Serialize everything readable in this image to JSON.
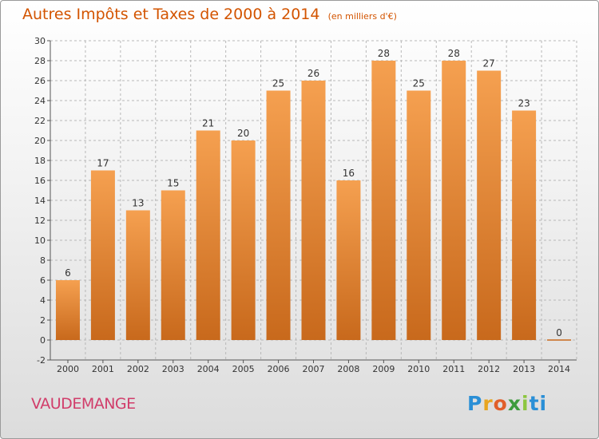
{
  "place_name": "VAUDEMANGE",
  "logo": {
    "letters": [
      "P",
      "r",
      "o",
      "x",
      "i",
      "ti"
    ]
  },
  "colors": {
    "bar_top": "#f5a050",
    "bar_bottom": "#c8691c",
    "title": "#d35400",
    "place": "#d13d6a",
    "grid": "#b8b8b8"
  },
  "chart_data": {
    "type": "bar",
    "title": "Autres Impôts et Taxes de 2000 à 2014",
    "unit_label": "(en milliers d'€)",
    "categories": [
      "2000",
      "2001",
      "2002",
      "2003",
      "2004",
      "2005",
      "2006",
      "2007",
      "2008",
      "2009",
      "2010",
      "2011",
      "2012",
      "2013",
      "2014"
    ],
    "values": [
      6,
      17,
      13,
      15,
      21,
      20,
      25,
      26,
      16,
      28,
      25,
      28,
      27,
      23,
      0
    ],
    "data_labels": [
      "6",
      "17",
      "13",
      "15",
      "21",
      "20",
      "25",
      "26",
      "16",
      "28",
      "25",
      "28",
      "27",
      "23",
      "0"
    ],
    "ylim": [
      -2,
      30
    ],
    "yticks": [
      -2,
      0,
      2,
      4,
      6,
      8,
      10,
      12,
      14,
      16,
      18,
      20,
      22,
      24,
      26,
      28,
      30
    ],
    "grid": true,
    "legend": "none",
    "xlabel": "",
    "ylabel": ""
  }
}
